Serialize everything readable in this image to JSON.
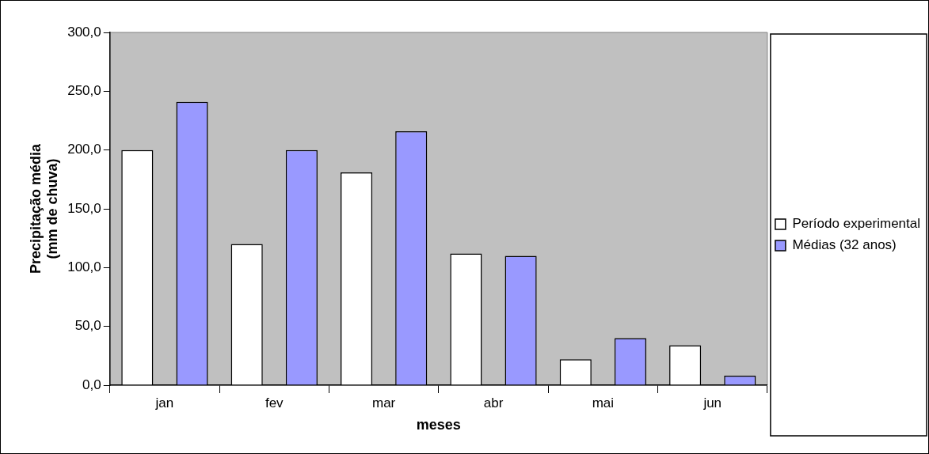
{
  "chart_data": {
    "type": "bar",
    "xlabel": "meses",
    "ylabel": "Precipitação média\n(mm de chuva)",
    "categories": [
      "jan",
      "fev",
      "mar",
      "abr",
      "mai",
      "jun"
    ],
    "series": [
      {
        "name": "Período experimental",
        "color": "#ffffff",
        "values": [
          200,
          120,
          181,
          112,
          22,
          34
        ]
      },
      {
        "name": "Médias (32 anos)",
        "color": "#9999ff",
        "values": [
          241,
          200,
          216,
          110,
          40,
          8
        ]
      }
    ],
    "ylim": [
      0,
      300
    ],
    "yticks": [
      {
        "value": 0,
        "label": "0,0"
      },
      {
        "value": 50,
        "label": "50,0"
      },
      {
        "value": 100,
        "label": "100,0"
      },
      {
        "value": 150,
        "label": "150,0"
      },
      {
        "value": 200,
        "label": "200,0"
      },
      {
        "value": 250,
        "label": "250,0"
      },
      {
        "value": 300,
        "label": "300,0"
      }
    ],
    "grid": false,
    "legend": "right"
  }
}
